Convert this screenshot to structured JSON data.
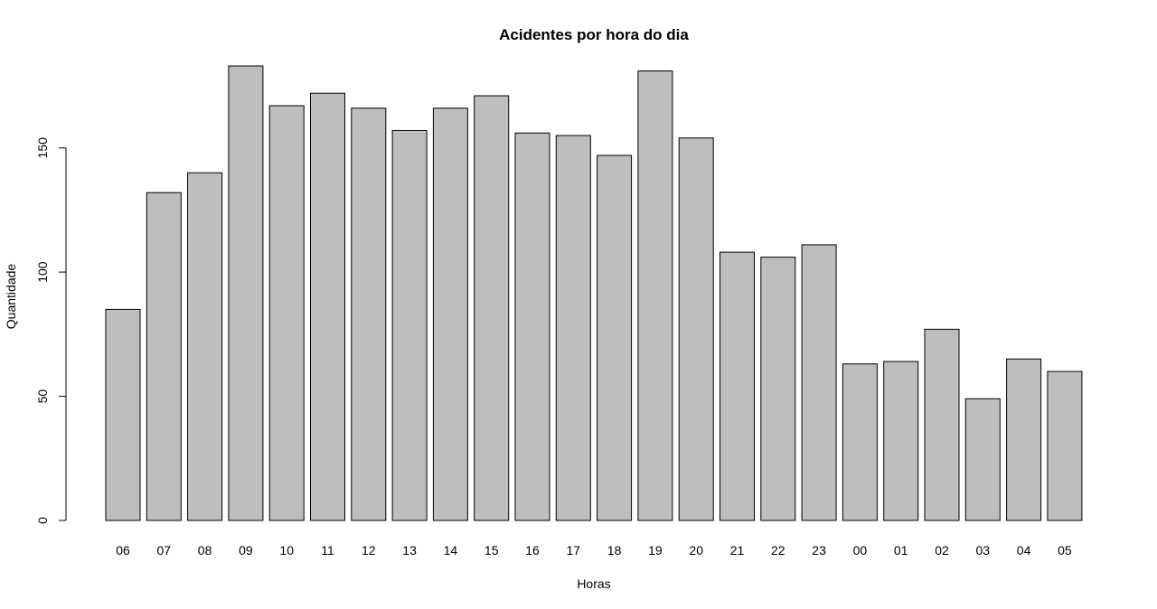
{
  "chart_data": {
    "type": "bar",
    "title": "Acidentes por hora do dia",
    "xlabel": "Horas",
    "ylabel": "Quantidade",
    "categories": [
      "06",
      "07",
      "08",
      "09",
      "10",
      "11",
      "12",
      "13",
      "14",
      "15",
      "16",
      "17",
      "18",
      "19",
      "20",
      "21",
      "22",
      "23",
      "00",
      "01",
      "02",
      "03",
      "04",
      "05"
    ],
    "values": [
      85,
      132,
      140,
      183,
      167,
      172,
      166,
      157,
      166,
      171,
      156,
      155,
      147,
      181,
      154,
      108,
      106,
      111,
      63,
      64,
      77,
      49,
      65,
      60
    ],
    "yticks": [
      0,
      50,
      100,
      150
    ],
    "ylim": [
      0,
      183
    ],
    "grid": false,
    "legend": "none",
    "colors": {
      "bar_fill": "#bebebe",
      "bar_stroke": "#000000"
    }
  }
}
